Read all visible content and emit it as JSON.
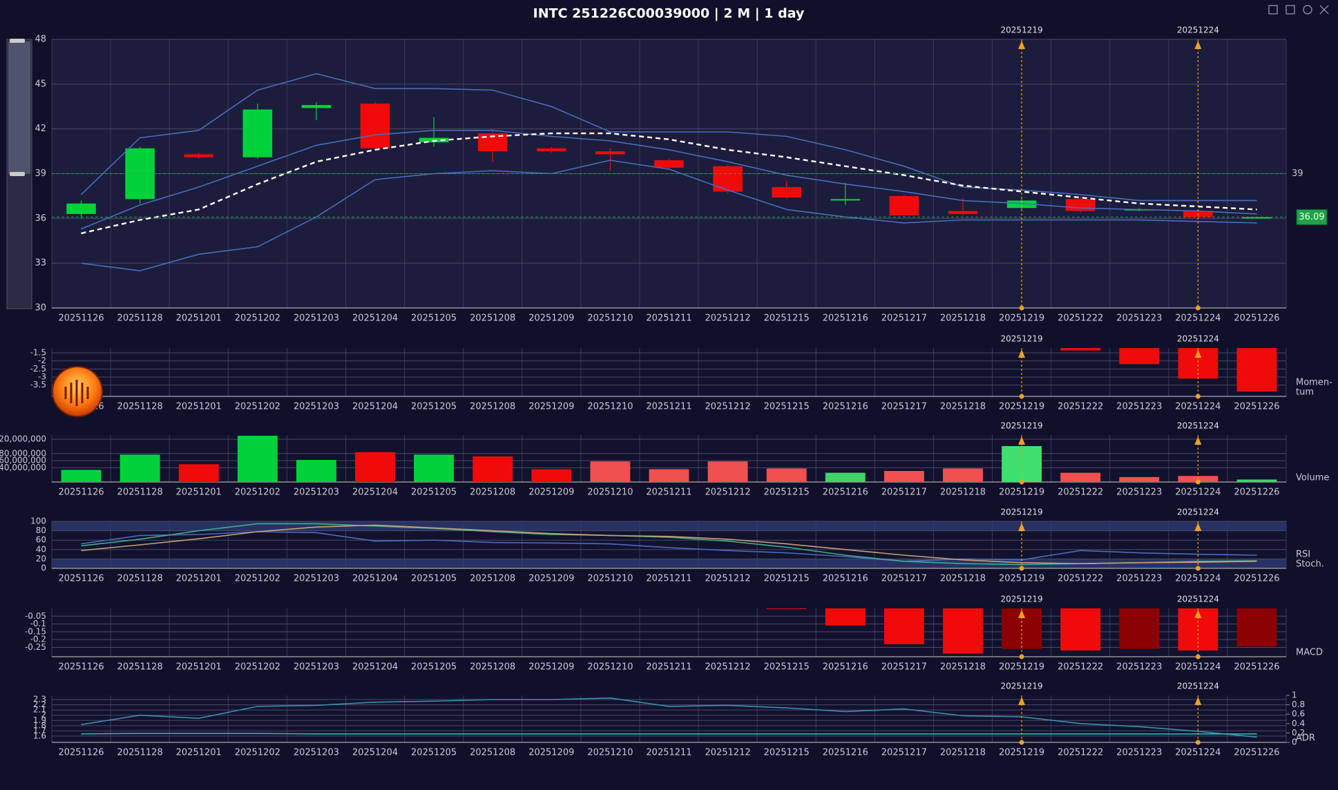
{
  "chart_data": [
    {
      "type": "candlestick",
      "title": "INTC  251226C00039000 | 2 M | 1 day",
      "categories": [
        "20251126",
        "20251128",
        "20251201",
        "20251202",
        "20251203",
        "20251204",
        "20251205",
        "20251208",
        "20251209",
        "20251210",
        "20251211",
        "20251212",
        "20251215",
        "20251216",
        "20251217",
        "20251218",
        "20251219",
        "20251222",
        "20251223",
        "20251224",
        "20251226"
      ],
      "open": [
        36.3,
        37.3,
        40.3,
        40.1,
        43.4,
        43.7,
        41.1,
        41.7,
        40.7,
        40.5,
        39.9,
        39.5,
        38.1,
        37.2,
        37.5,
        36.5,
        36.7,
        37.3,
        36.6,
        36.5,
        36.0
      ],
      "high": [
        37.2,
        40.8,
        40.4,
        43.7,
        43.8,
        43.8,
        42.8,
        42.0,
        40.8,
        40.7,
        40.0,
        39.6,
        38.5,
        38.4,
        37.6,
        37.4,
        37.3,
        37.5,
        36.7,
        36.6,
        36.1
      ],
      "low": [
        36.0,
        37.0,
        40.0,
        40.0,
        42.6,
        40.6,
        40.8,
        39.8,
        40.4,
        39.2,
        39.3,
        37.7,
        37.3,
        36.9,
        36.1,
        36.2,
        36.6,
        36.4,
        36.5,
        36.0,
        36.0
      ],
      "close": [
        37.0,
        40.7,
        40.1,
        43.3,
        43.6,
        40.7,
        41.4,
        40.5,
        40.5,
        40.3,
        39.4,
        37.8,
        37.4,
        37.3,
        36.2,
        36.3,
        37.2,
        36.5,
        36.6,
        36.1,
        36.09
      ],
      "up_color": "#00d33a",
      "down_color": "#f00a0a",
      "ylim": [
        30,
        48
      ],
      "yticks": [
        30,
        33,
        36,
        39,
        42,
        45,
        48
      ],
      "grid": true,
      "lines": [
        {
          "color": "#4a6cc0",
          "values": [
            37.6,
            41.4,
            41.9,
            44.6,
            45.7,
            44.7,
            44.7,
            44.6,
            43.5,
            41.8,
            41.8,
            41.8,
            41.5,
            40.6,
            39.5,
            38.1,
            37.9,
            37.6,
            37.2,
            37.2,
            37.2
          ]
        },
        {
          "color": "#4a6cc0",
          "values": [
            35.3,
            36.9,
            38.1,
            39.5,
            40.9,
            41.6,
            41.9,
            41.9,
            41.5,
            41.2,
            40.6,
            39.8,
            38.9,
            38.3,
            37.8,
            37.2,
            37.0,
            36.7,
            36.6,
            36.5,
            36.3
          ]
        },
        {
          "color": "#4a6cc0",
          "values": [
            33.0,
            32.5,
            33.6,
            34.1,
            36.1,
            38.6,
            39.0,
            39.2,
            39.0,
            39.9,
            39.3,
            37.9,
            36.6,
            36.1,
            35.7,
            35.9,
            35.9,
            35.9,
            35.9,
            35.8,
            35.7
          ]
        },
        {
          "color": "#ffffff",
          "dashed": true,
          "values": [
            35.0,
            35.9,
            36.6,
            38.3,
            39.8,
            40.6,
            41.2,
            41.5,
            41.7,
            41.7,
            41.3,
            40.6,
            40.1,
            39.5,
            38.9,
            38.2,
            37.8,
            37.4,
            37.0,
            36.8,
            36.6
          ]
        }
      ],
      "levels": [
        {
          "value": 39,
          "color": "#1fa34a",
          "boxed": false
        },
        {
          "value": 36.09,
          "color": "#1fa34a",
          "boxed": true
        }
      ],
      "markers": [
        "20251219",
        "20251224"
      ],
      "marker_color": "#f0a020"
    },
    {
      "type": "bar",
      "label": [
        "Momen-",
        "tum"
      ],
      "color": "#f00a0a",
      "values": [
        null,
        null,
        null,
        null,
        null,
        null,
        null,
        null,
        null,
        null,
        null,
        null,
        null,
        null,
        null,
        null,
        null,
        -1.35,
        -2.2,
        -3.1,
        -3.9
      ],
      "ylim": [
        -4.2,
        -1.2
      ],
      "yticks": [
        -1.5,
        -2,
        -2.5,
        -3,
        -3.5
      ],
      "grid": true
    },
    {
      "type": "bar",
      "label": [
        "Volume"
      ],
      "values": [
        34000000,
        77000000,
        50000000,
        130000000,
        62000000,
        84000000,
        77000000,
        72000000,
        36000000,
        58000000,
        36000000,
        58000000,
        38000000,
        26000000,
        31000000,
        38000000,
        101000000,
        26000000,
        14000000,
        17000000,
        7000000
      ],
      "colors": [
        "#00d33a",
        "#00d33a",
        "#f00a0a",
        "#00d33a",
        "#00d33a",
        "#f00a0a",
        "#00d33a",
        "#f00a0a",
        "#f00a0a",
        "#f05050",
        "#f05050",
        "#f05050",
        "#f05050",
        "#3fd46a",
        "#f05050",
        "#f05050",
        "#3fe070",
        "#f05050",
        "#f05050",
        "#f05050",
        "#3fd46a"
      ],
      "ylim": [
        0,
        132000000
      ],
      "yticks": [
        {
          "value": 40000000,
          "label": "40,000,000"
        },
        {
          "value": 60000000,
          "label": "60,000,000"
        },
        {
          "value": 80000000,
          "label": "80,000,000"
        },
        {
          "value": 120000000,
          "label": "120,000,000"
        }
      ],
      "grid": true
    },
    {
      "type": "line",
      "label": [
        "RSI",
        "Stoch."
      ],
      "ylim": [
        0,
        100
      ],
      "yticks": [
        0,
        20,
        40,
        60,
        80,
        100
      ],
      "grid": true,
      "zones": [
        [
          0,
          20
        ],
        [
          80,
          100
        ]
      ],
      "series": [
        {
          "color": "#4a6cc0",
          "values": [
            52,
            70,
            72,
            78,
            76,
            58,
            60,
            55,
            54,
            52,
            44,
            38,
            33,
            25,
            15,
            20,
            18,
            38,
            33,
            30,
            28
          ]
        },
        {
          "color": "#3cae8e",
          "values": [
            48,
            62,
            80,
            95,
            95,
            90,
            85,
            78,
            72,
            70,
            66,
            58,
            45,
            28,
            15,
            10,
            8,
            10,
            12,
            15,
            16
          ]
        },
        {
          "color": "#c8a070",
          "values": [
            38,
            50,
            63,
            78,
            88,
            92,
            86,
            80,
            74,
            70,
            68,
            62,
            52,
            40,
            28,
            18,
            12,
            10,
            12,
            13,
            15
          ]
        }
      ]
    },
    {
      "type": "bar",
      "label": [
        "MACD"
      ],
      "values": [
        null,
        null,
        null,
        null,
        null,
        null,
        null,
        null,
        null,
        null,
        null,
        null,
        -0.003,
        -0.11,
        -0.23,
        -0.29,
        -0.26,
        -0.27,
        -0.26,
        -0.27,
        -0.245
      ],
      "colors": [
        "#f00a0a",
        "#f00a0a",
        "#f00a0a",
        "#f00a0a",
        "#f00a0a",
        "#f00a0a",
        "#f00a0a",
        "#f00a0a",
        "#f00a0a",
        "#f00a0a",
        "#f00a0a",
        "#f00a0a",
        "#f00a0a",
        "#f00a0a",
        "#f00a0a",
        "#f00a0a",
        "#8b0000",
        "#f00a0a",
        "#8b0000",
        "#f00a0a",
        "#8b0000"
      ],
      "ylim": [
        -0.31,
        0
      ],
      "yticks": [
        -0.05,
        -0.1,
        -0.15,
        -0.2,
        -0.25
      ],
      "grid": true
    },
    {
      "type": "line",
      "label": [
        "ADR"
      ],
      "ylim": [
        1.48,
        2.38
      ],
      "yticks": [
        1.6,
        1.7,
        1.8,
        1.9,
        2,
        2.1,
        2.2,
        2.3
      ],
      "grid": true,
      "y2lim": [
        0,
        1
      ],
      "y2ticks": [
        0,
        0.2,
        0.4,
        0.6,
        0.8,
        1
      ],
      "series": [
        {
          "color": "#3a8fb0",
          "values": [
            1.82,
            2.0,
            1.94,
            2.17,
            2.19,
            2.25,
            2.27,
            2.3,
            2.3,
            2.33,
            2.17,
            2.19,
            2.14,
            2.07,
            2.12,
            1.99,
            1.97,
            1.84,
            1.78,
            1.69,
            1.58
          ]
        },
        {
          "color": "#2fb4b4",
          "axis": "y2",
          "values": [
            0.18,
            0.19,
            0.19,
            0.19,
            0.18,
            0.18,
            0.18,
            0.18,
            0.18,
            0.18,
            0.18,
            0.18,
            0.18,
            0.18,
            0.18,
            0.18,
            0.18,
            0.18,
            0.18,
            0.18,
            0.18
          ]
        }
      ]
    }
  ]
}
